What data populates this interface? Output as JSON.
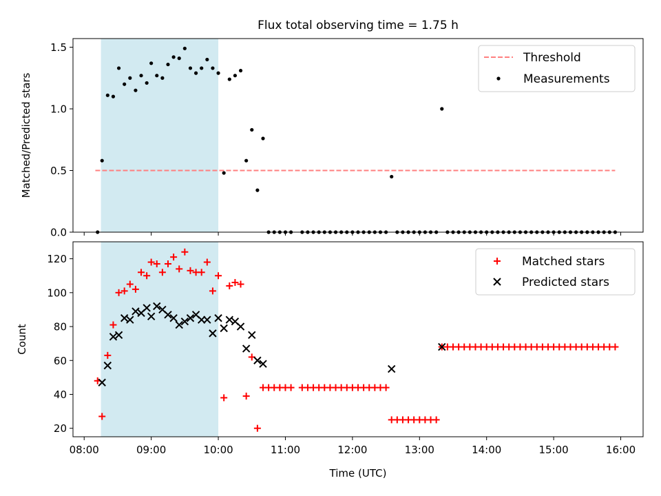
{
  "figure": {
    "title": "Flux total observing time = 1.75 h",
    "xlabel": "Time (UTC)",
    "xticks": [
      "08:00",
      "09:00",
      "10:00",
      "11:00",
      "12:00",
      "13:00",
      "14:00",
      "15:00",
      "16:00"
    ]
  },
  "colors": {
    "threshold": "#ff7f7f",
    "measurements": "#000000",
    "matched": "#ff0000",
    "predicted": "#000000",
    "span": "#add8e6"
  },
  "chart_data": [
    {
      "type": "scatter",
      "ylabel": "Matched/Predicted stars",
      "xlim": [
        "07:50",
        "16:20"
      ],
      "ylim": [
        0,
        1.57
      ],
      "yticks": [
        "0.0",
        "0.5",
        "1.0",
        "1.5"
      ],
      "highlight_span": [
        "08:15",
        "10:00"
      ],
      "legend": [
        "Threshold",
        "Measurements"
      ],
      "legend_position": "upper right",
      "threshold": {
        "name": "Threshold",
        "value": 0.5,
        "x_range": [
          "08:10",
          "15:55"
        ]
      },
      "series": [
        {
          "name": "Measurements",
          "points": [
            [
              "08:12",
              0.0
            ],
            [
              "08:16",
              0.58
            ],
            [
              "08:21",
              1.11
            ],
            [
              "08:26",
              1.1
            ],
            [
              "08:31",
              1.33
            ],
            [
              "08:36",
              1.2
            ],
            [
              "08:41",
              1.25
            ],
            [
              "08:46",
              1.15
            ],
            [
              "08:51",
              1.27
            ],
            [
              "08:56",
              1.21
            ],
            [
              "09:00",
              1.37
            ],
            [
              "09:05",
              1.27
            ],
            [
              "09:10",
              1.25
            ],
            [
              "09:15",
              1.36
            ],
            [
              "09:20",
              1.42
            ],
            [
              "09:25",
              1.41
            ],
            [
              "09:30",
              1.49
            ],
            [
              "09:35",
              1.33
            ],
            [
              "09:40",
              1.29
            ],
            [
              "09:45",
              1.33
            ],
            [
              "09:50",
              1.4
            ],
            [
              "09:55",
              1.33
            ],
            [
              "10:00",
              1.29
            ],
            [
              "10:05",
              0.48
            ],
            [
              "10:10",
              1.24
            ],
            [
              "10:15",
              1.27
            ],
            [
              "10:20",
              1.31
            ],
            [
              "10:25",
              0.58
            ],
            [
              "10:30",
              0.83
            ],
            [
              "10:35",
              0.34
            ],
            [
              "10:40",
              0.76
            ],
            [
              "10:45",
              0.0
            ],
            [
              "10:50",
              0.0
            ],
            [
              "10:55",
              0.0
            ],
            [
              "11:00",
              0.0
            ],
            [
              "11:05",
              0.0
            ],
            [
              "11:15",
              0.0
            ],
            [
              "11:20",
              0.0
            ],
            [
              "11:25",
              0.0
            ],
            [
              "11:30",
              0.0
            ],
            [
              "11:35",
              0.0
            ],
            [
              "11:40",
              0.0
            ],
            [
              "11:45",
              0.0
            ],
            [
              "11:50",
              0.0
            ],
            [
              "11:55",
              0.0
            ],
            [
              "12:00",
              0.0
            ],
            [
              "12:05",
              0.0
            ],
            [
              "12:10",
              0.0
            ],
            [
              "12:15",
              0.0
            ],
            [
              "12:20",
              0.0
            ],
            [
              "12:25",
              0.0
            ],
            [
              "12:30",
              0.0
            ],
            [
              "12:35",
              0.45
            ],
            [
              "12:40",
              0.0
            ],
            [
              "12:45",
              0.0
            ],
            [
              "12:50",
              0.0
            ],
            [
              "12:55",
              0.0
            ],
            [
              "13:00",
              0.0
            ],
            [
              "13:05",
              0.0
            ],
            [
              "13:10",
              0.0
            ],
            [
              "13:15",
              0.0
            ],
            [
              "13:20",
              1.0
            ],
            [
              "13:25",
              0.0
            ],
            [
              "13:30",
              0.0
            ],
            [
              "13:35",
              0.0
            ],
            [
              "13:40",
              0.0
            ],
            [
              "13:45",
              0.0
            ],
            [
              "13:50",
              0.0
            ],
            [
              "13:55",
              0.0
            ],
            [
              "14:00",
              0.0
            ],
            [
              "14:05",
              0.0
            ],
            [
              "14:10",
              0.0
            ],
            [
              "14:15",
              0.0
            ],
            [
              "14:20",
              0.0
            ],
            [
              "14:25",
              0.0
            ],
            [
              "14:30",
              0.0
            ],
            [
              "14:35",
              0.0
            ],
            [
              "14:40",
              0.0
            ],
            [
              "14:45",
              0.0
            ],
            [
              "14:50",
              0.0
            ],
            [
              "14:55",
              0.0
            ],
            [
              "15:00",
              0.0
            ],
            [
              "15:05",
              0.0
            ],
            [
              "15:10",
              0.0
            ],
            [
              "15:15",
              0.0
            ],
            [
              "15:20",
              0.0
            ],
            [
              "15:25",
              0.0
            ],
            [
              "15:30",
              0.0
            ],
            [
              "15:35",
              0.0
            ],
            [
              "15:40",
              0.0
            ],
            [
              "15:45",
              0.0
            ],
            [
              "15:50",
              0.0
            ],
            [
              "15:55",
              0.0
            ]
          ]
        }
      ]
    },
    {
      "type": "scatter",
      "ylabel": "Count",
      "xlim": [
        "07:50",
        "16:20"
      ],
      "ylim": [
        15,
        130
      ],
      "yticks": [
        "20",
        "40",
        "60",
        "80",
        "100",
        "120"
      ],
      "highlight_span": [
        "08:15",
        "10:00"
      ],
      "legend": [
        "Matched stars",
        "Predicted stars"
      ],
      "legend_position": "upper right",
      "series": [
        {
          "name": "Matched stars",
          "marker": "plus",
          "points": [
            [
              "08:12",
              48
            ],
            [
              "08:16",
              27
            ],
            [
              "08:21",
              63
            ],
            [
              "08:26",
              81
            ],
            [
              "08:31",
              100
            ],
            [
              "08:36",
              101
            ],
            [
              "08:41",
              105
            ],
            [
              "08:46",
              102
            ],
            [
              "08:51",
              112
            ],
            [
              "08:56",
              110
            ],
            [
              "09:00",
              118
            ],
            [
              "09:05",
              117
            ],
            [
              "09:10",
              112
            ],
            [
              "09:15",
              117
            ],
            [
              "09:20",
              121
            ],
            [
              "09:25",
              114
            ],
            [
              "09:30",
              124
            ],
            [
              "09:35",
              113
            ],
            [
              "09:40",
              112
            ],
            [
              "09:45",
              112
            ],
            [
              "09:50",
              118
            ],
            [
              "09:55",
              101
            ],
            [
              "10:00",
              110
            ],
            [
              "10:05",
              38
            ],
            [
              "10:10",
              104
            ],
            [
              "10:15",
              106
            ],
            [
              "10:20",
              105
            ],
            [
              "10:25",
              39
            ],
            [
              "10:30",
              62
            ],
            [
              "10:35",
              20
            ],
            [
              "10:40",
              44
            ],
            [
              "10:45",
              44
            ],
            [
              "10:50",
              44
            ],
            [
              "10:55",
              44
            ],
            [
              "11:00",
              44
            ],
            [
              "11:05",
              44
            ],
            [
              "11:15",
              44
            ],
            [
              "11:20",
              44
            ],
            [
              "11:25",
              44
            ],
            [
              "11:30",
              44
            ],
            [
              "11:35",
              44
            ],
            [
              "11:40",
              44
            ],
            [
              "11:45",
              44
            ],
            [
              "11:50",
              44
            ],
            [
              "11:55",
              44
            ],
            [
              "12:00",
              44
            ],
            [
              "12:05",
              44
            ],
            [
              "12:10",
              44
            ],
            [
              "12:15",
              44
            ],
            [
              "12:20",
              44
            ],
            [
              "12:25",
              44
            ],
            [
              "12:30",
              44
            ],
            [
              "12:35",
              25
            ],
            [
              "12:40",
              25
            ],
            [
              "12:45",
              25
            ],
            [
              "12:50",
              25
            ],
            [
              "12:55",
              25
            ],
            [
              "13:00",
              25
            ],
            [
              "13:05",
              25
            ],
            [
              "13:10",
              25
            ],
            [
              "13:15",
              25
            ],
            [
              "13:20",
              68
            ],
            [
              "13:25",
              68
            ],
            [
              "13:30",
              68
            ],
            [
              "13:35",
              68
            ],
            [
              "13:40",
              68
            ],
            [
              "13:45",
              68
            ],
            [
              "13:50",
              68
            ],
            [
              "13:55",
              68
            ],
            [
              "14:00",
              68
            ],
            [
              "14:05",
              68
            ],
            [
              "14:10",
              68
            ],
            [
              "14:15",
              68
            ],
            [
              "14:20",
              68
            ],
            [
              "14:25",
              68
            ],
            [
              "14:30",
              68
            ],
            [
              "14:35",
              68
            ],
            [
              "14:40",
              68
            ],
            [
              "14:45",
              68
            ],
            [
              "14:50",
              68
            ],
            [
              "14:55",
              68
            ],
            [
              "15:00",
              68
            ],
            [
              "15:05",
              68
            ],
            [
              "15:10",
              68
            ],
            [
              "15:15",
              68
            ],
            [
              "15:20",
              68
            ],
            [
              "15:25",
              68
            ],
            [
              "15:30",
              68
            ],
            [
              "15:35",
              68
            ],
            [
              "15:40",
              68
            ],
            [
              "15:45",
              68
            ],
            [
              "15:50",
              68
            ],
            [
              "15:55",
              68
            ]
          ]
        },
        {
          "name": "Predicted stars",
          "marker": "x",
          "points": [
            [
              "08:16",
              47
            ],
            [
              "08:21",
              57
            ],
            [
              "08:26",
              74
            ],
            [
              "08:31",
              75
            ],
            [
              "08:36",
              85
            ],
            [
              "08:41",
              84
            ],
            [
              "08:46",
              89
            ],
            [
              "08:51",
              88
            ],
            [
              "08:56",
              91
            ],
            [
              "09:00",
              86
            ],
            [
              "09:05",
              92
            ],
            [
              "09:10",
              90
            ],
            [
              "09:15",
              87
            ],
            [
              "09:20",
              85
            ],
            [
              "09:25",
              81
            ],
            [
              "09:30",
              83
            ],
            [
              "09:35",
              85
            ],
            [
              "09:40",
              87
            ],
            [
              "09:45",
              84
            ],
            [
              "09:50",
              84
            ],
            [
              "09:55",
              76
            ],
            [
              "10:00",
              85
            ],
            [
              "10:05",
              79
            ],
            [
              "10:10",
              84
            ],
            [
              "10:15",
              83
            ],
            [
              "10:20",
              80
            ],
            [
              "10:25",
              67
            ],
            [
              "10:30",
              75
            ],
            [
              "10:35",
              60
            ],
            [
              "10:40",
              58
            ],
            [
              "12:35",
              55
            ],
            [
              "13:20",
              68
            ]
          ]
        }
      ]
    }
  ]
}
